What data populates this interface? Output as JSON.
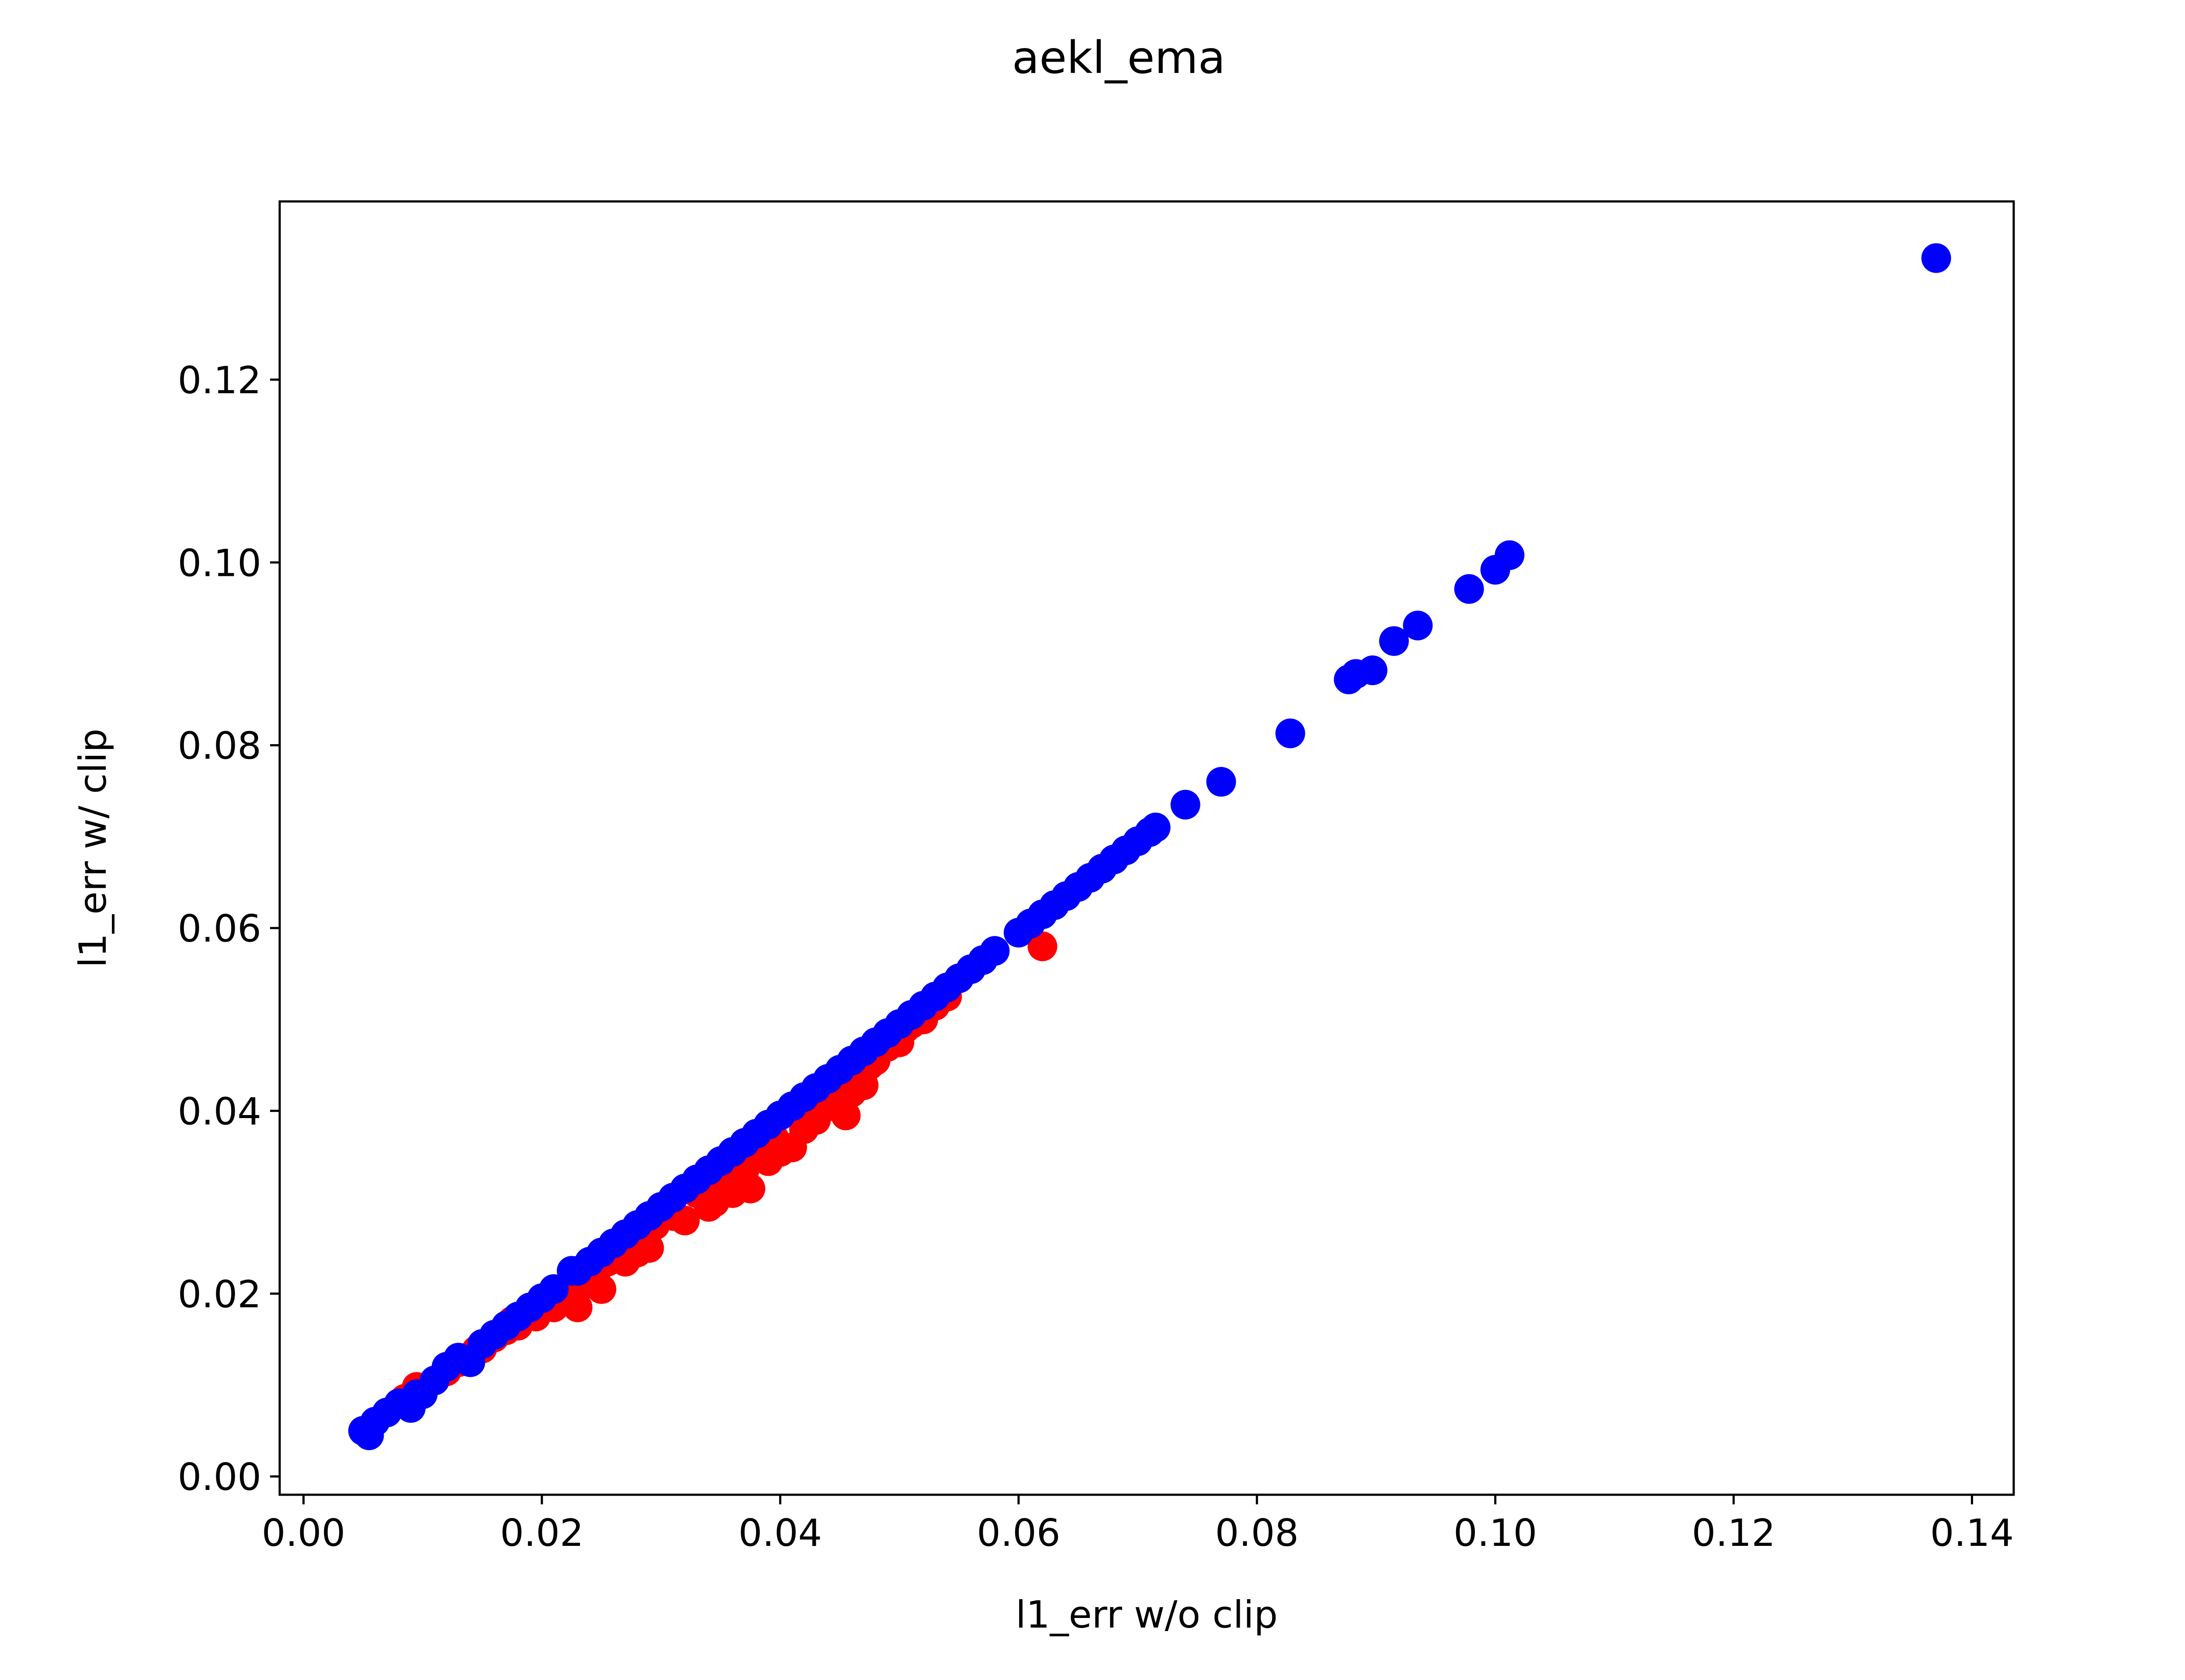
{
  "chart_data": {
    "type": "scatter",
    "title": "aekl_ema",
    "xlabel": "l1_err w/o clip",
    "ylabel": "l1_err w/ clip",
    "xlim": [
      -0.002,
      0.1435
    ],
    "ylim": [
      -0.002,
      0.1395
    ],
    "xticks": [
      0.0,
      0.02,
      0.04,
      0.06,
      0.08,
      0.1,
      0.12,
      0.14
    ],
    "xtick_labels": [
      "0.00",
      "0.02",
      "0.04",
      "0.06",
      "0.08",
      "0.10",
      "0.12",
      "0.14"
    ],
    "yticks": [
      0.0,
      0.02,
      0.04,
      0.06,
      0.08,
      0.1,
      0.12
    ],
    "ytick_labels": [
      "0.00",
      "0.02",
      "0.04",
      "0.06",
      "0.08",
      "0.10",
      "0.12"
    ],
    "grid": false,
    "legend": "none",
    "series": [
      {
        "color": "#ff0000",
        "points": [
          [
            0.0085,
            0.0085
          ],
          [
            0.0095,
            0.0098
          ],
          [
            0.011,
            0.0105
          ],
          [
            0.012,
            0.0115
          ],
          [
            0.013,
            0.0125
          ],
          [
            0.0145,
            0.0138
          ],
          [
            0.015,
            0.014
          ],
          [
            0.016,
            0.0152
          ],
          [
            0.017,
            0.016
          ],
          [
            0.0175,
            0.017
          ],
          [
            0.018,
            0.0165
          ],
          [
            0.019,
            0.018
          ],
          [
            0.0195,
            0.0175
          ],
          [
            0.02,
            0.019
          ],
          [
            0.021,
            0.0185
          ],
          [
            0.0215,
            0.0195
          ],
          [
            0.022,
            0.0205
          ],
          [
            0.023,
            0.0185
          ],
          [
            0.0235,
            0.021
          ],
          [
            0.024,
            0.0225
          ],
          [
            0.0245,
            0.0215
          ],
          [
            0.025,
            0.0205
          ],
          [
            0.0255,
            0.0235
          ],
          [
            0.026,
            0.024
          ],
          [
            0.0265,
            0.025
          ],
          [
            0.027,
            0.0235
          ],
          [
            0.0275,
            0.026
          ],
          [
            0.028,
            0.0245
          ],
          [
            0.0285,
            0.0265
          ],
          [
            0.029,
            0.025
          ],
          [
            0.0295,
            0.0275
          ],
          [
            0.03,
            0.029
          ],
          [
            0.031,
            0.0285
          ],
          [
            0.032,
            0.028
          ],
          [
            0.033,
            0.031
          ],
          [
            0.034,
            0.0295
          ],
          [
            0.0345,
            0.03
          ],
          [
            0.035,
            0.0325
          ],
          [
            0.0355,
            0.0345
          ],
          [
            0.036,
            0.031
          ],
          [
            0.037,
            0.0335
          ],
          [
            0.0375,
            0.0315
          ],
          [
            0.038,
            0.035
          ],
          [
            0.0385,
            0.0365
          ],
          [
            0.039,
            0.0345
          ],
          [
            0.0395,
            0.037
          ],
          [
            0.04,
            0.0355
          ],
          [
            0.041,
            0.036
          ],
          [
            0.042,
            0.038
          ],
          [
            0.043,
            0.039
          ],
          [
            0.044,
            0.041
          ],
          [
            0.0445,
            0.0405
          ],
          [
            0.0455,
            0.0395
          ],
          [
            0.046,
            0.042
          ],
          [
            0.047,
            0.0428
          ],
          [
            0.0475,
            0.045
          ],
          [
            0.048,
            0.0455
          ],
          [
            0.049,
            0.047
          ],
          [
            0.05,
            0.0475
          ],
          [
            0.0505,
            0.049
          ],
          [
            0.051,
            0.0495
          ],
          [
            0.052,
            0.05
          ],
          [
            0.053,
            0.0515
          ],
          [
            0.054,
            0.0525
          ],
          [
            0.062,
            0.058
          ]
        ]
      },
      {
        "color": "#0000ff",
        "points": [
          [
            0.005,
            0.005
          ],
          [
            0.0055,
            0.0045
          ],
          [
            0.006,
            0.006
          ],
          [
            0.007,
            0.007
          ],
          [
            0.008,
            0.008
          ],
          [
            0.009,
            0.0075
          ],
          [
            0.0095,
            0.009
          ],
          [
            0.01,
            0.009
          ],
          [
            0.011,
            0.0105
          ],
          [
            0.012,
            0.012
          ],
          [
            0.013,
            0.013
          ],
          [
            0.014,
            0.0125
          ],
          [
            0.015,
            0.0145
          ],
          [
            0.016,
            0.0155
          ],
          [
            0.017,
            0.0165
          ],
          [
            0.018,
            0.0175
          ],
          [
            0.019,
            0.0185
          ],
          [
            0.02,
            0.0195
          ],
          [
            0.021,
            0.0205
          ],
          [
            0.0225,
            0.0225
          ],
          [
            0.023,
            0.0225
          ],
          [
            0.024,
            0.0235
          ],
          [
            0.025,
            0.0245
          ],
          [
            0.026,
            0.0255
          ],
          [
            0.027,
            0.0265
          ],
          [
            0.028,
            0.0275
          ],
          [
            0.029,
            0.0285
          ],
          [
            0.03,
            0.0295
          ],
          [
            0.031,
            0.0305
          ],
          [
            0.032,
            0.0315
          ],
          [
            0.033,
            0.0325
          ],
          [
            0.034,
            0.0335
          ],
          [
            0.035,
            0.0345
          ],
          [
            0.036,
            0.0355
          ],
          [
            0.037,
            0.0365
          ],
          [
            0.038,
            0.0375
          ],
          [
            0.039,
            0.0385
          ],
          [
            0.04,
            0.0395
          ],
          [
            0.041,
            0.0405
          ],
          [
            0.042,
            0.0415
          ],
          [
            0.043,
            0.0425
          ],
          [
            0.044,
            0.0435
          ],
          [
            0.045,
            0.0445
          ],
          [
            0.046,
            0.0455
          ],
          [
            0.047,
            0.0465
          ],
          [
            0.048,
            0.0475
          ],
          [
            0.049,
            0.0485
          ],
          [
            0.05,
            0.0495
          ],
          [
            0.051,
            0.0505
          ],
          [
            0.052,
            0.0515
          ],
          [
            0.053,
            0.0525
          ],
          [
            0.054,
            0.0535
          ],
          [
            0.055,
            0.0545
          ],
          [
            0.056,
            0.0555
          ],
          [
            0.057,
            0.0565
          ],
          [
            0.058,
            0.0575
          ],
          [
            0.06,
            0.0595
          ],
          [
            0.061,
            0.0605
          ],
          [
            0.062,
            0.0615
          ],
          [
            0.063,
            0.0625
          ],
          [
            0.064,
            0.0635
          ],
          [
            0.065,
            0.0645
          ],
          [
            0.066,
            0.0655
          ],
          [
            0.067,
            0.0665
          ],
          [
            0.068,
            0.0675
          ],
          [
            0.069,
            0.0685
          ],
          [
            0.07,
            0.0695
          ],
          [
            0.071,
            0.0705
          ],
          [
            0.0715,
            0.071
          ],
          [
            0.074,
            0.0735
          ],
          [
            0.077,
            0.076
          ],
          [
            0.0828,
            0.0813
          ],
          [
            0.0877,
            0.0872
          ],
          [
            0.0883,
            0.0878
          ],
          [
            0.0897,
            0.0882
          ],
          [
            0.0915,
            0.0914
          ],
          [
            0.0935,
            0.0931
          ],
          [
            0.0978,
            0.0971
          ],
          [
            0.1,
            0.0992
          ],
          [
            0.1012,
            0.1008
          ],
          [
            0.137,
            0.1333
          ]
        ]
      }
    ]
  }
}
